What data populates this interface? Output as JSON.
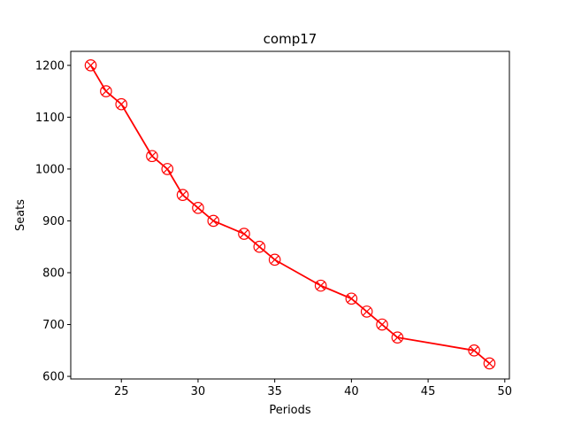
{
  "chart_data": {
    "type": "line",
    "title": "comp17",
    "xlabel": "Periods",
    "ylabel": "Seats",
    "xlim": [
      21.7,
      50.3
    ],
    "ylim": [
      595,
      1227
    ],
    "xticks": [
      25,
      30,
      35,
      40,
      45,
      50
    ],
    "yticks": [
      600,
      700,
      800,
      900,
      1000,
      1100,
      1200
    ],
    "grid": false,
    "series": [
      {
        "name": "comp17",
        "color": "#ff0000",
        "marker": "circle-x",
        "x": [
          23,
          24,
          25,
          27,
          28,
          29,
          30,
          31,
          33,
          34,
          35,
          38,
          40,
          41,
          42,
          43,
          48,
          49
        ],
        "y": [
          1200,
          1150,
          1125,
          1025,
          1000,
          950,
          925,
          900,
          875,
          850,
          825,
          775,
          750,
          725,
          700,
          675,
          650,
          625
        ]
      }
    ]
  }
}
